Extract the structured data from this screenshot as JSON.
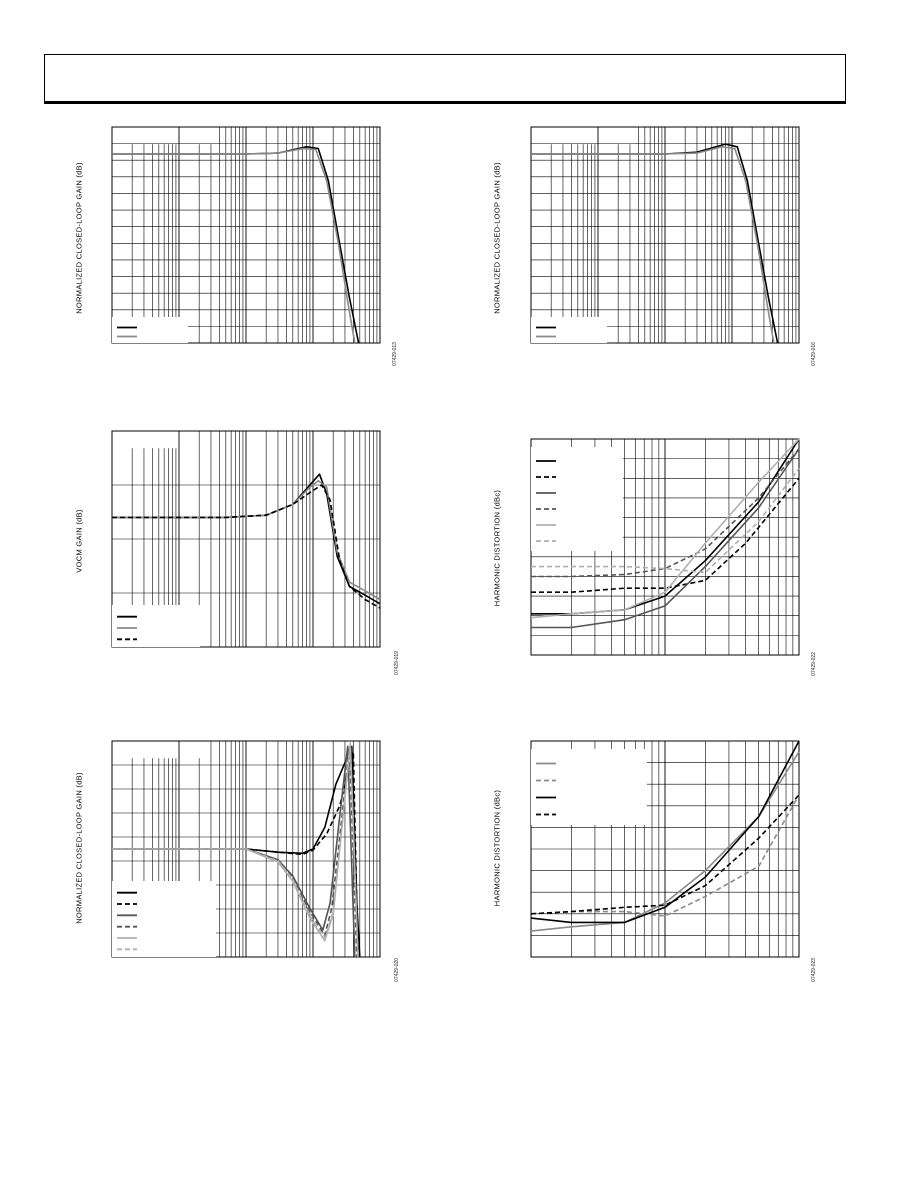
{
  "header": {
    "title": ""
  },
  "colors": {
    "black": "#000000",
    "dark_gray": "#555555",
    "mid_gray": "#8a8a8a",
    "light_gray": "#b0b0b0"
  },
  "chart_data": [
    {
      "id": "c1",
      "type": "line",
      "x_scale": "log",
      "grid": true,
      "ylabel": "NORMALIZED CLOSED-LOOP GAIN (dB)",
      "fig": "07429-013",
      "xlim": [
        1,
        10000
      ],
      "ylim": [
        -21,
        3
      ],
      "series": [
        {
          "style": "solid",
          "color": "#000000",
          "points": [
            [
              1,
              0
            ],
            [
              100,
              0
            ],
            [
              300,
              0.1
            ],
            [
              800,
              0.8
            ],
            [
              1200,
              0.6
            ],
            [
              1700,
              -3
            ],
            [
              2500,
              -10
            ],
            [
              3500,
              -16
            ],
            [
              4800,
              -21
            ]
          ]
        },
        {
          "style": "solid",
          "color": "#8a8a8a",
          "points": [
            [
              1,
              0
            ],
            [
              100,
              0
            ],
            [
              300,
              0.1
            ],
            [
              700,
              0.6
            ],
            [
              1100,
              0.5
            ],
            [
              1600,
              -3
            ],
            [
              2400,
              -10
            ],
            [
              3400,
              -17
            ],
            [
              4200,
              -21
            ]
          ]
        }
      ]
    },
    {
      "id": "c2",
      "type": "line",
      "x_scale": "log",
      "grid": true,
      "ylabel": "NORMALIZED CLOSED-LOOP GAIN (dB)",
      "fig": "07429-016",
      "xlim": [
        1,
        10000
      ],
      "ylim": [
        -21,
        3
      ],
      "series": [
        {
          "style": "solid",
          "color": "#000000",
          "points": [
            [
              1,
              0
            ],
            [
              100,
              0
            ],
            [
              300,
              0.2
            ],
            [
              800,
              1.1
            ],
            [
              1200,
              0.8
            ],
            [
              1700,
              -3
            ],
            [
              2500,
              -10
            ],
            [
              3500,
              -16
            ],
            [
              4800,
              -21
            ]
          ]
        },
        {
          "style": "solid",
          "color": "#8a8a8a",
          "points": [
            [
              1,
              0
            ],
            [
              100,
              0
            ],
            [
              300,
              0.1
            ],
            [
              700,
              0.8
            ],
            [
              1100,
              0.6
            ],
            [
              1600,
              -3
            ],
            [
              2400,
              -10
            ],
            [
              3400,
              -17
            ],
            [
              4200,
              -21
            ]
          ]
        }
      ]
    },
    {
      "id": "c3",
      "type": "line",
      "x_scale": "log",
      "grid": true,
      "ylabel": "VOCM GAIN (dB)",
      "fig": "07429-019",
      "xlim": [
        1,
        10000
      ],
      "ylim": [
        -3,
        2
      ],
      "series": [
        {
          "style": "solid",
          "color": "#000000",
          "points": [
            [
              1,
              0
            ],
            [
              50,
              0
            ],
            [
              200,
              0.05
            ],
            [
              500,
              0.3
            ],
            [
              900,
              0.75
            ],
            [
              1250,
              1.0
            ],
            [
              1600,
              0.55
            ],
            [
              2300,
              -0.9
            ],
            [
              3500,
              -1.6
            ],
            [
              6000,
              -1.8
            ],
            [
              10000,
              -2.0
            ]
          ]
        },
        {
          "style": "solid",
          "color": "#8a8a8a",
          "points": [
            [
              1,
              0
            ],
            [
              50,
              0
            ],
            [
              200,
              0.05
            ],
            [
              500,
              0.3
            ],
            [
              900,
              0.7
            ],
            [
              1200,
              0.85
            ],
            [
              1600,
              0.7
            ],
            [
              2300,
              -0.8
            ],
            [
              3500,
              -1.5
            ],
            [
              6000,
              -1.7
            ],
            [
              10000,
              -1.9
            ]
          ]
        },
        {
          "style": "dashed",
          "color": "#000000",
          "points": [
            [
              1,
              0
            ],
            [
              50,
              0
            ],
            [
              200,
              0.05
            ],
            [
              500,
              0.3
            ],
            [
              950,
              0.6
            ],
            [
              1350,
              0.75
            ],
            [
              1800,
              0.4
            ],
            [
              2500,
              -1.0
            ],
            [
              3500,
              -1.6
            ],
            [
              6000,
              -1.9
            ],
            [
              10000,
              -2.1
            ]
          ]
        }
      ]
    },
    {
      "id": "c4",
      "type": "line",
      "x_scale": "log",
      "grid": true,
      "ylabel": "HARMONIC DISTORTION (dBc)",
      "fig": "07429-022",
      "xlim": [
        1,
        100
      ],
      "ylim": [
        -120,
        -10
      ],
      "series": [
        {
          "style": "solid",
          "color": "#000000",
          "points": [
            [
              1,
              -99
            ],
            [
              2,
              -99
            ],
            [
              5,
              -97
            ],
            [
              10,
              -90
            ],
            [
              20,
              -72
            ],
            [
              50,
              -42
            ],
            [
              100,
              -10
            ]
          ]
        },
        {
          "style": "dashed",
          "color": "#000000",
          "points": [
            [
              1,
              -88
            ],
            [
              2,
              -88
            ],
            [
              5,
              -86
            ],
            [
              10,
              -86
            ],
            [
              20,
              -82
            ],
            [
              40,
              -63
            ],
            [
              100,
              -30
            ]
          ]
        },
        {
          "style": "solid",
          "color": "#555555",
          "points": [
            [
              1,
              -106
            ],
            [
              2,
              -106
            ],
            [
              5,
              -102
            ],
            [
              10,
              -95
            ],
            [
              20,
              -75
            ],
            [
              50,
              -45
            ],
            [
              100,
              -15
            ]
          ]
        },
        {
          "style": "dashed",
          "color": "#555555",
          "points": [
            [
              1,
              -80
            ],
            [
              2,
              -80
            ],
            [
              5,
              -79
            ],
            [
              10,
              -76
            ],
            [
              20,
              -66
            ],
            [
              50,
              -40
            ],
            [
              100,
              -15
            ]
          ]
        },
        {
          "style": "solid",
          "color": "#b0b0b0",
          "points": [
            [
              1,
              -101
            ],
            [
              2,
              -99
            ],
            [
              5,
              -97
            ],
            [
              10,
              -88
            ],
            [
              20,
              -63
            ],
            [
              50,
              -32
            ],
            [
              100,
              -10
            ]
          ]
        },
        {
          "style": "dashed",
          "color": "#b0b0b0",
          "points": [
            [
              1,
              -75
            ],
            [
              2,
              -75
            ],
            [
              5,
              -75
            ],
            [
              10,
              -76
            ],
            [
              20,
              -78
            ],
            [
              50,
              -52
            ],
            [
              100,
              -25
            ]
          ]
        }
      ]
    },
    {
      "id": "c5",
      "type": "line",
      "x_scale": "log",
      "grid": true,
      "ylabel": "NORMALIZED CLOSED-LOOP GAIN (dB)",
      "fig": "07429-020",
      "xlim": [
        1,
        10000
      ],
      "ylim": [
        -10,
        10
      ],
      "series": [
        {
          "style": "solid",
          "color": "#000000",
          "points": [
            [
              1,
              0
            ],
            [
              100,
              0
            ],
            [
              300,
              -0.3
            ],
            [
              700,
              -0.4
            ],
            [
              1000,
              0
            ],
            [
              1500,
              2
            ],
            [
              2200,
              6
            ],
            [
              3000,
              8
            ],
            [
              3800,
              9.5
            ],
            [
              4500,
              -5
            ],
            [
              5000,
              -10
            ]
          ]
        },
        {
          "style": "dashed",
          "color": "#000000",
          "points": [
            [
              1,
              0
            ],
            [
              100,
              0
            ],
            [
              300,
              -0.3
            ],
            [
              700,
              -0.5
            ],
            [
              1000,
              -0.1
            ],
            [
              1600,
              1.4
            ],
            [
              2500,
              4
            ],
            [
              3300,
              7
            ],
            [
              4000,
              9
            ],
            [
              4700,
              -10
            ]
          ]
        },
        {
          "style": "solid",
          "color": "#555555",
          "points": [
            [
              1,
              0
            ],
            [
              100,
              0
            ],
            [
              300,
              -1
            ],
            [
              500,
              -2.5
            ],
            [
              900,
              -5.5
            ],
            [
              1400,
              -7.5
            ],
            [
              1800,
              -5
            ],
            [
              2400,
              2
            ],
            [
              3300,
              9.5
            ],
            [
              4200,
              -10
            ]
          ]
        },
        {
          "style": "dashed",
          "color": "#555555",
          "points": [
            [
              1,
              0
            ],
            [
              100,
              0
            ],
            [
              300,
              -1
            ],
            [
              500,
              -2.7
            ],
            [
              900,
              -5.8
            ],
            [
              1500,
              -8
            ],
            [
              1900,
              -5.5
            ],
            [
              2600,
              2
            ],
            [
              3500,
              9.5
            ],
            [
              4500,
              -10
            ]
          ]
        },
        {
          "style": "solid",
          "color": "#b0b0b0",
          "points": [
            [
              1,
              0
            ],
            [
              100,
              0
            ],
            [
              300,
              -1.2
            ],
            [
              500,
              -3
            ],
            [
              900,
              -6.4
            ],
            [
              1500,
              -8.5
            ],
            [
              2000,
              -6
            ],
            [
              2700,
              2
            ],
            [
              3600,
              9.8
            ],
            [
              4700,
              -10
            ]
          ]
        },
        {
          "style": "dashed",
          "color": "#b0b0b0",
          "points": [
            [
              1,
              0
            ],
            [
              100,
              0
            ],
            [
              300,
              -1.1
            ],
            [
              500,
              -2.8
            ],
            [
              900,
              -6.2
            ],
            [
              1500,
              -8.2
            ],
            [
              2000,
              -5.8
            ],
            [
              2700,
              2
            ],
            [
              3600,
              9.6
            ],
            [
              4700,
              -10
            ]
          ]
        }
      ]
    },
    {
      "id": "c6",
      "type": "line",
      "x_scale": "log",
      "grid": true,
      "ylabel": "HARMONIC DISTORTION (dBc)",
      "fig": "07429-023",
      "xlim": [
        1,
        100
      ],
      "ylim": [
        -110,
        -10
      ],
      "series": [
        {
          "style": "solid",
          "color": "#8a8a8a",
          "points": [
            [
              1,
              -98
            ],
            [
              2,
              -96
            ],
            [
              5,
              -94
            ],
            [
              10,
              -85
            ],
            [
              20,
              -70
            ],
            [
              50,
              -45
            ],
            [
              100,
              -15
            ]
          ]
        },
        {
          "style": "dashed",
          "color": "#8a8a8a",
          "points": [
            [
              1,
              -90
            ],
            [
              2,
              -89
            ],
            [
              5,
              -89
            ],
            [
              10,
              -91
            ],
            [
              20,
              -82
            ],
            [
              50,
              -68
            ],
            [
              100,
              -35
            ]
          ]
        },
        {
          "style": "solid",
          "color": "#000000",
          "points": [
            [
              1,
              -92
            ],
            [
              2,
              -94
            ],
            [
              5,
              -94
            ],
            [
              10,
              -87
            ],
            [
              20,
              -73
            ],
            [
              50,
              -45
            ],
            [
              100,
              -10
            ]
          ]
        },
        {
          "style": "dashed",
          "color": "#000000",
          "points": [
            [
              1,
              -90
            ],
            [
              2,
              -89
            ],
            [
              5,
              -87
            ],
            [
              10,
              -86
            ],
            [
              20,
              -77
            ],
            [
              50,
              -55
            ],
            [
              100,
              -35
            ]
          ]
        }
      ]
    }
  ]
}
